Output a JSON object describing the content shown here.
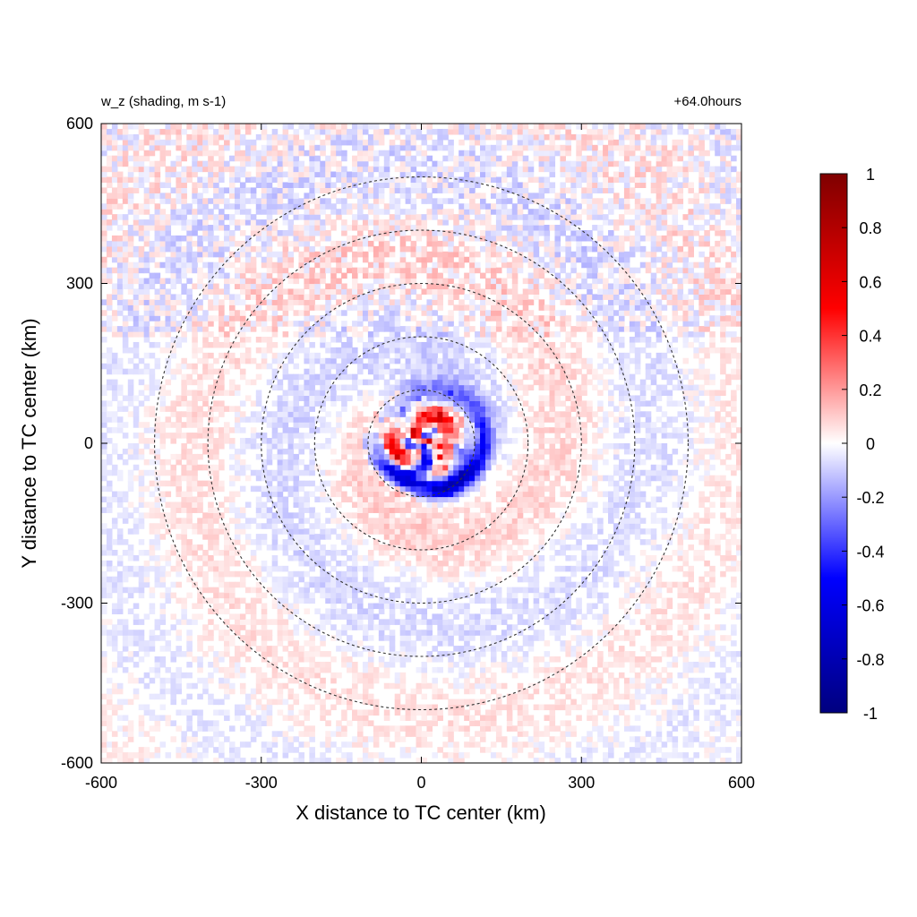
{
  "chart_data": {
    "type": "heatmap",
    "title_left": "w_z (shading, m s-1)",
    "title_right": "+64.0hours",
    "xlabel": "X distance to TC center (km)",
    "ylabel": "Y distance to TC center (km)",
    "xlim": [
      -600,
      600
    ],
    "ylim": [
      -600,
      600
    ],
    "xticks": [
      -600,
      -300,
      0,
      300,
      600
    ],
    "yticks": [
      -600,
      -300,
      0,
      300,
      600
    ],
    "range_rings_km": [
      100,
      200,
      300,
      400,
      500
    ],
    "colorbar": {
      "min": -1,
      "max": 1,
      "ticks": [
        1,
        0.8,
        0.6,
        0.4,
        0.2,
        0,
        -0.2,
        -0.4,
        -0.6,
        -0.8,
        -1
      ],
      "colors": [
        "#00007f",
        "#0000ff",
        "#ffffff",
        "#ff0000",
        "#7f0000"
      ]
    },
    "field_features": [
      {
        "feature": "inner spiral band",
        "sign": "negative",
        "peak": -0.8
      },
      {
        "feature": "core updraft cells",
        "sign": "positive",
        "peak": 0.8
      },
      {
        "feature": "outer rainband",
        "sign": "mixed",
        "peak": 0.2
      }
    ]
  }
}
